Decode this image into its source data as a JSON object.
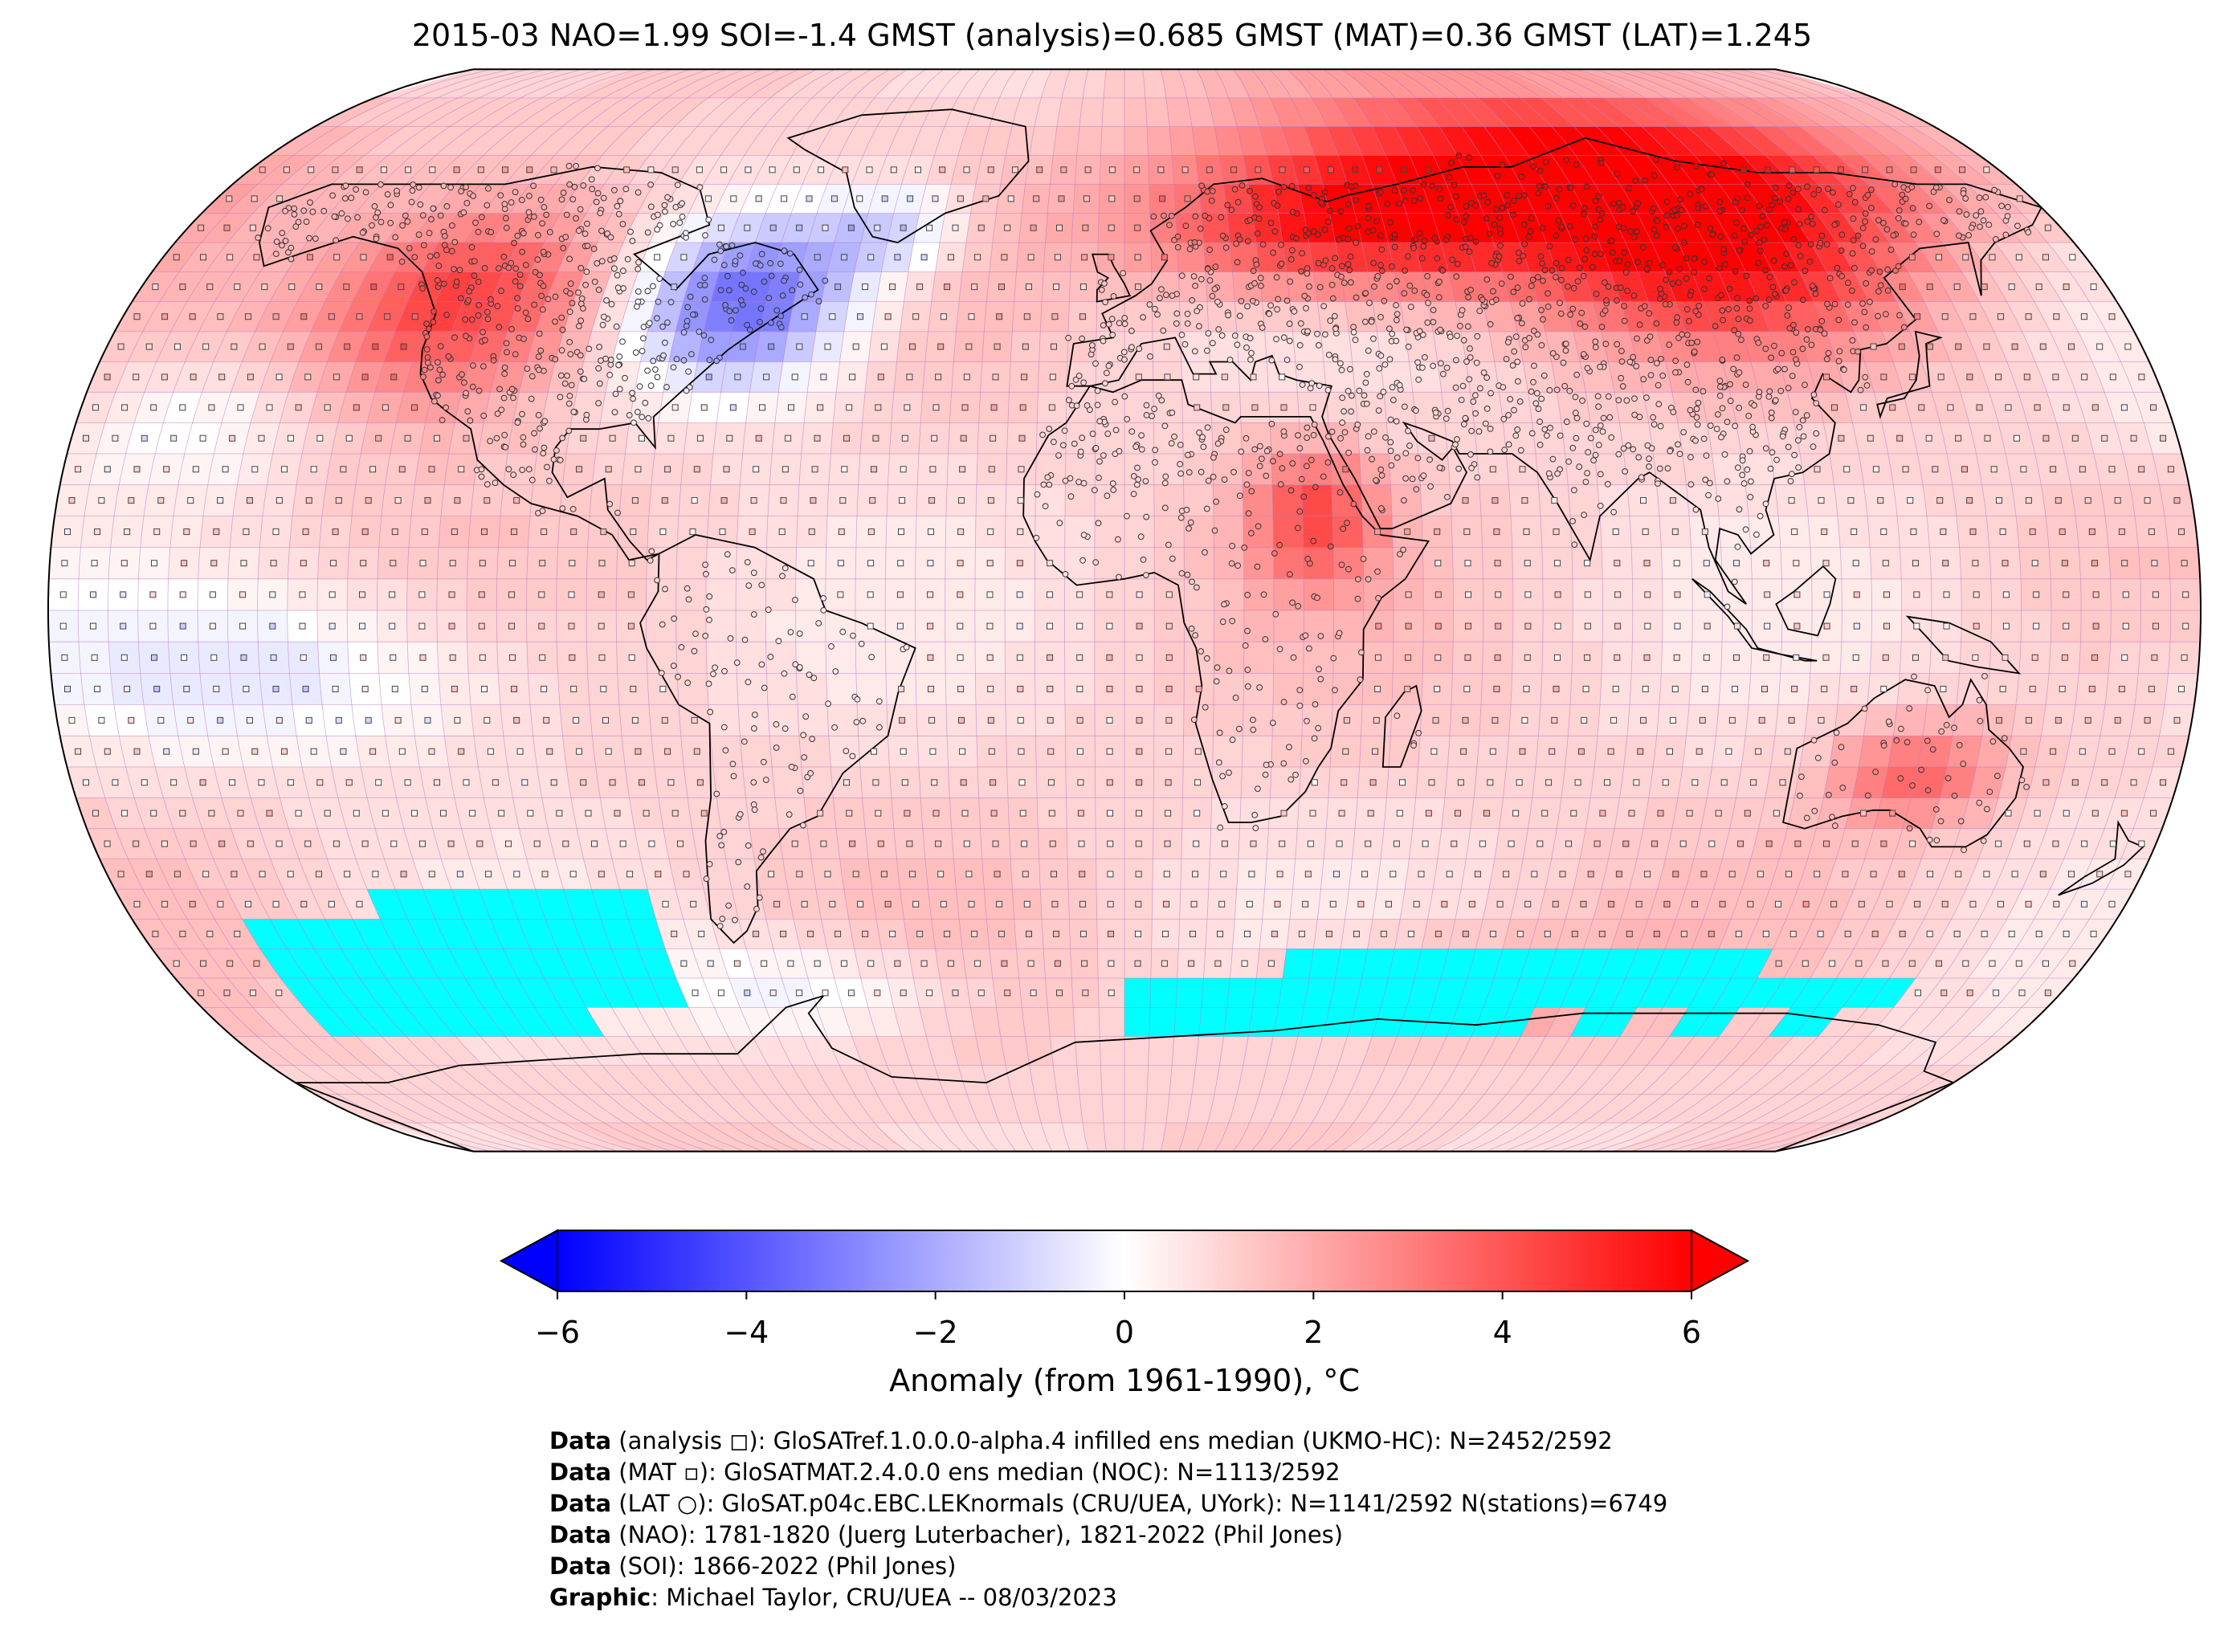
{
  "title": "2015-03 NAO=1.99 SOI=-1.4 GMST (analysis)=0.685 GMST (MAT)=0.36 GMST (LAT)=1.245",
  "colorbar": {
    "label": "Anomaly (from 1961-1990), °C",
    "ticks": [
      "−6",
      "−4",
      "−2",
      "0",
      "2",
      "4",
      "6"
    ],
    "tick_values": [
      -6,
      -4,
      -2,
      0,
      2,
      4,
      6
    ],
    "min": -6,
    "max": 6,
    "colors": {
      "low": "#0000ff",
      "mid": "#ffffff",
      "high": "#ff0000",
      "missing": "#00ffff"
    },
    "extend": "both"
  },
  "map": {
    "projection": "robinson",
    "grid_cell_deg": 5,
    "gridline_color": "#b070c0",
    "coastline_color": "#000000",
    "markers": {
      "analysis": "square",
      "mat": "small-square",
      "lat": "circle"
    }
  },
  "credits": [
    {
      "key": "Data",
      "text": " (analysis ◻): GloSATref.1.0.0.0-alpha.4 infilled ens median (UKMO-HC): N=2452/2592"
    },
    {
      "key": "Data",
      "text": " (MAT ▫): GloSATMAT.2.4.0.0 ens median (NOC): N=1113/2592"
    },
    {
      "key": "Data",
      "text": " (LAT ○): GloSAT.p04c.EBC.LEKnormals (CRU/UEA, UYork): N=1141/2592 N(stations)=6749"
    },
    {
      "key": "Data",
      "text": " (NAO): 1781-1820 (Juerg Luterbacher), 1821-2022 (Phil Jones)"
    },
    {
      "key": "Data",
      "text": " (SOI): 1866-2022 (Phil Jones)"
    },
    {
      "key": "Graphic",
      "text": ": Michael Taylor, CRU/UEA -- 08/03/2023"
    }
  ]
}
